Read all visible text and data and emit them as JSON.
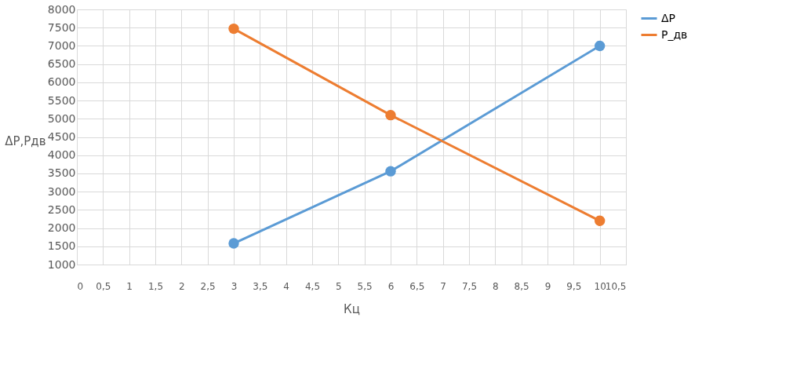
{
  "chart_data": {
    "type": "line",
    "xlabel": "Кц",
    "ylabel": "ΔP,Pдв",
    "x": [
      3,
      6,
      10
    ],
    "series": [
      {
        "name": "ΔP",
        "color": "#5b9bd5",
        "values": [
          1580,
          3560,
          7000
        ]
      },
      {
        "name": "P_дв",
        "color": "#ed7d31",
        "values": [
          7470,
          5100,
          2200
        ]
      }
    ],
    "xlim": [
      0,
      10.5
    ],
    "xticks": [
      0,
      {
        "value": 0.5,
        "label": "0,5"
      },
      1,
      {
        "value": 1.5,
        "label": "1,5"
      },
      2,
      {
        "value": 2.5,
        "label": "2,5"
      },
      3,
      {
        "value": 3.5,
        "label": "3,5"
      },
      4,
      {
        "value": 4.5,
        "label": "4,5"
      },
      5,
      {
        "value": 5.5,
        "label": "5,5"
      },
      6,
      {
        "value": 6.5,
        "label": "6,5"
      },
      7,
      {
        "value": 7.5,
        "label": "7,5"
      },
      8,
      {
        "value": 8.5,
        "label": "8,5"
      },
      9,
      {
        "value": 9.5,
        "label": "9,5"
      },
      10,
      {
        "value": 10.5,
        "label": "10,5"
      }
    ],
    "ylim": [
      1000,
      8000
    ],
    "yticks": [
      1000,
      1500,
      2000,
      2500,
      3000,
      3500,
      4000,
      4500,
      5000,
      5500,
      6000,
      6500,
      7000,
      7500,
      8000
    ],
    "grid": true,
    "legend": "right",
    "marker": "circle",
    "line_style": "solid"
  }
}
